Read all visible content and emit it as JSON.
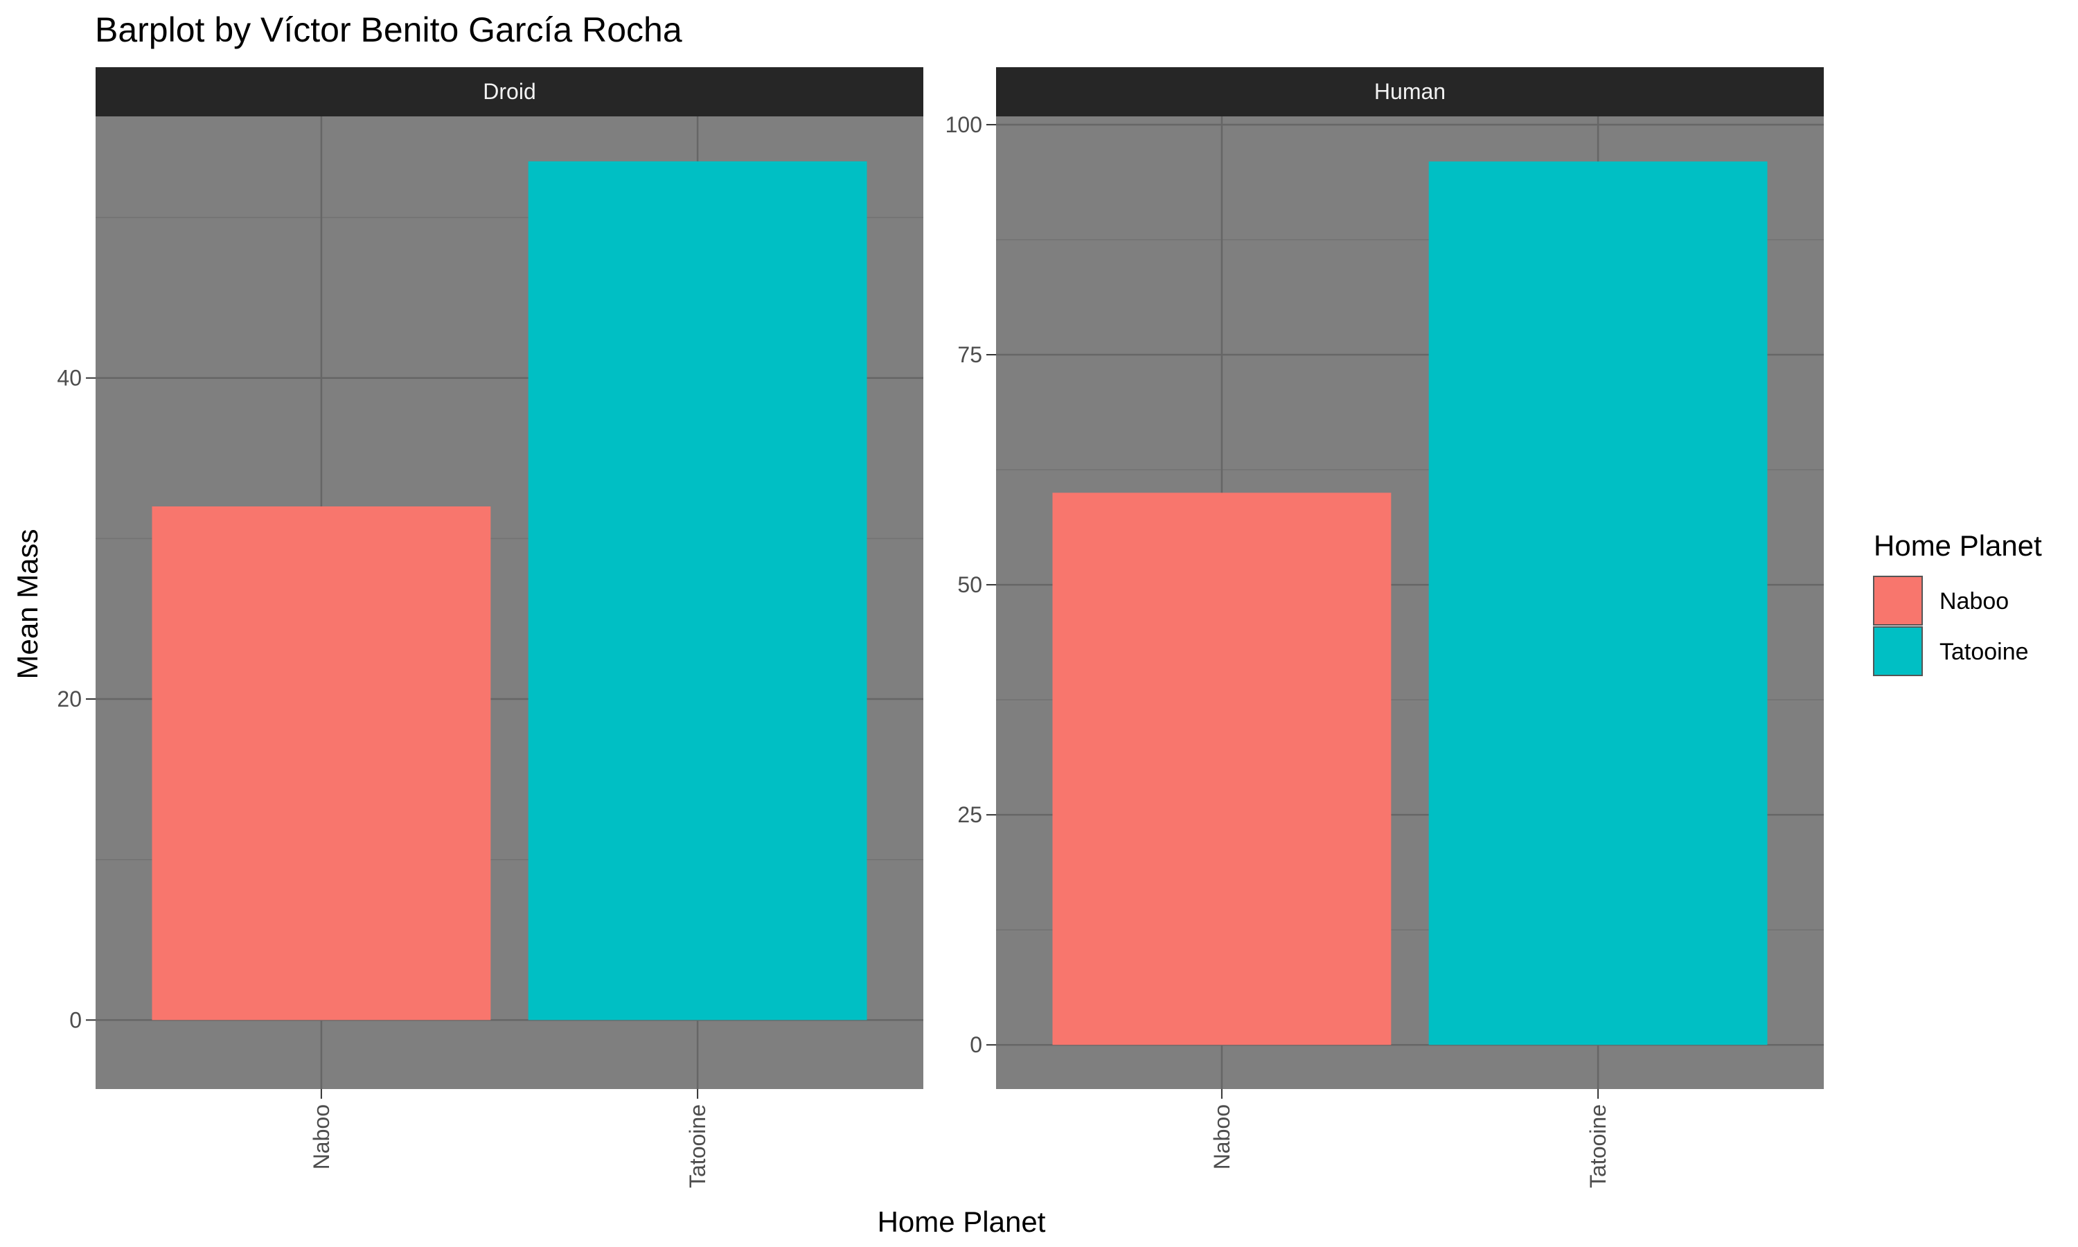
{
  "chart_data": {
    "type": "bar",
    "title": "Barplot by Víctor Benito García Rocha",
    "xlabel": "Home Planet",
    "ylabel": "Mean Mass",
    "grid": true,
    "legend_position": "right",
    "legend": {
      "title": "Home Planet",
      "entries": [
        {
          "label": "Naboo",
          "color": "#F8766D"
        },
        {
          "label": "Tatooine",
          "color": "#00BFC4"
        }
      ]
    },
    "categories": [
      "Naboo",
      "Tatooine"
    ],
    "panels": [
      {
        "strip": "Droid",
        "ylim": [
          -4.3,
          56.3
        ],
        "yticks": [
          0,
          20,
          40
        ],
        "minor_yticks": [
          10,
          30,
          50
        ],
        "values": [
          32,
          53.5
        ]
      },
      {
        "strip": "Human",
        "ylim": [
          -4.8,
          100.9
        ],
        "yticks": [
          0,
          25,
          50,
          75,
          100
        ],
        "minor_yticks": [
          12.5,
          37.5,
          62.5,
          87.5
        ],
        "values": [
          60,
          96
        ]
      }
    ]
  },
  "colors": {
    "panel_background": "#7F7F7F",
    "strip_background": "#262626",
    "grid_major": "#666666",
    "grid_minor": "#727272"
  }
}
